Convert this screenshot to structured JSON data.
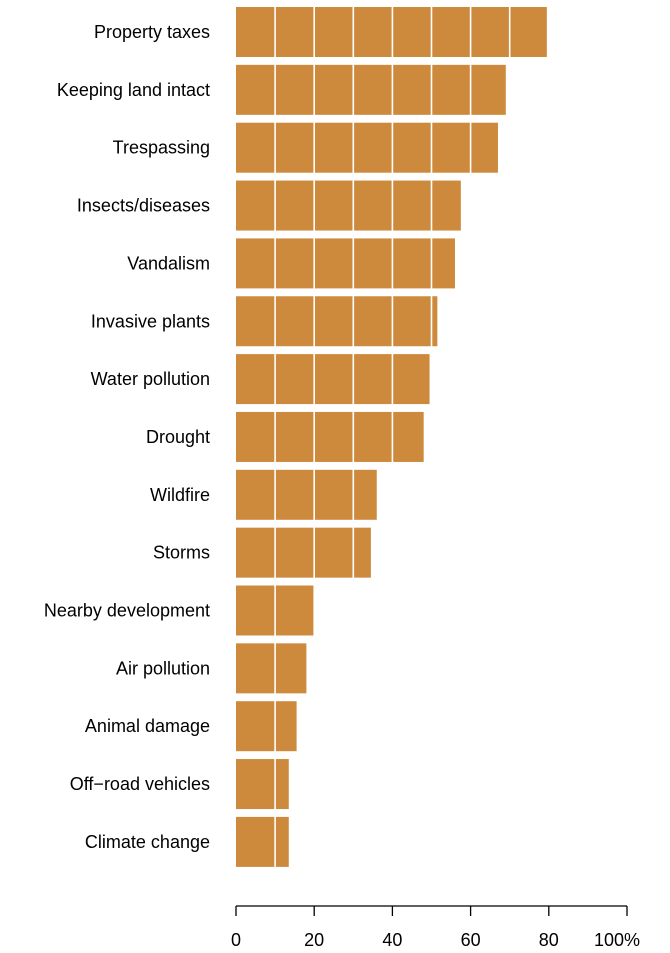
{
  "chart_data": {
    "type": "bar",
    "orientation": "horizontal",
    "categories": [
      "Property taxes",
      "Keeping land intact",
      "Trespassing",
      "Insects/diseases",
      "Vandalism",
      "Invasive plants",
      "Water pollution",
      "Drought",
      "Wildfire",
      "Storms",
      "Nearby development",
      "Air pollution",
      "Animal damage",
      "Off−road vehicles",
      "Climate change"
    ],
    "values": [
      79.5,
      69,
      67,
      57.5,
      56,
      51.5,
      49.5,
      48,
      36,
      34.5,
      20,
      18,
      15.5,
      13.5,
      13.5
    ],
    "xlim": [
      0,
      100
    ],
    "xticks": [
      0,
      20,
      40,
      60,
      80,
      100
    ],
    "xtick_labels": [
      "0",
      "20",
      "40",
      "60",
      "80",
      "100%"
    ],
    "grid": true,
    "grid_color": "#ffffff",
    "bar_color": "#cd8a3c",
    "title": "",
    "xlabel": "",
    "ylabel": ""
  }
}
